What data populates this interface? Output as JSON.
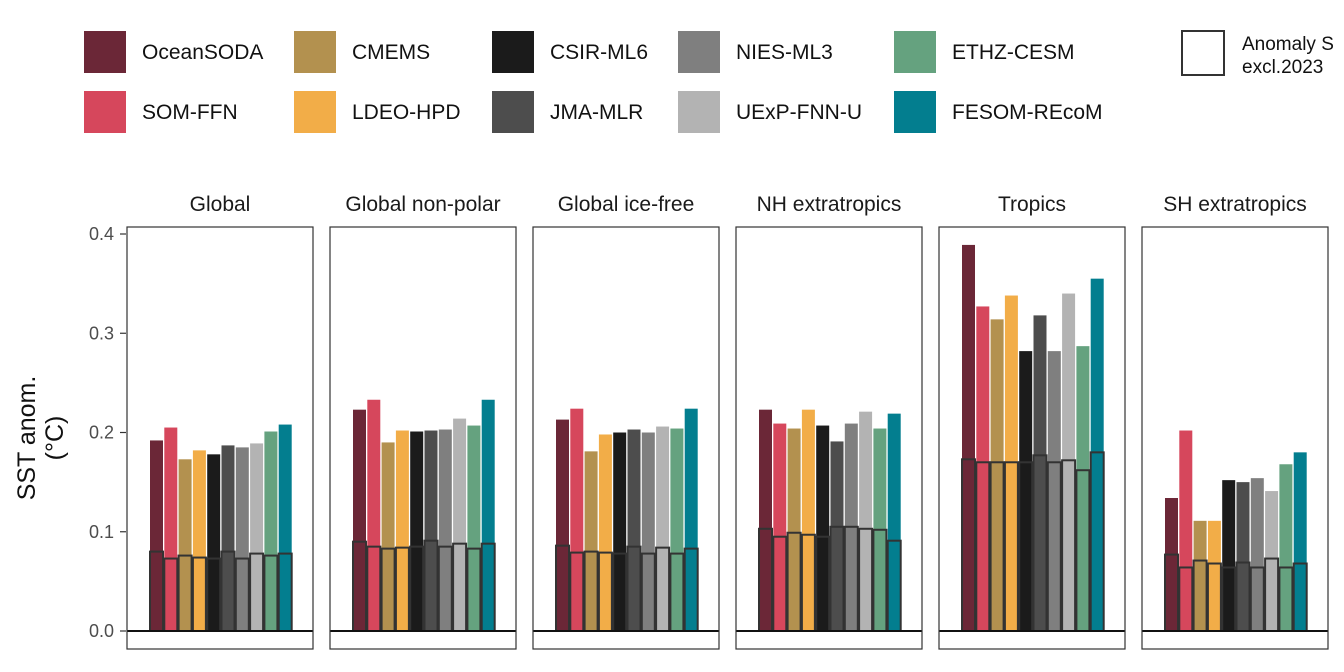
{
  "chart_data": {
    "type": "bar",
    "ylabel_line1": "SST anom.",
    "ylabel_line2": "(°C)",
    "ylim": [
      -0.02,
      0.41
    ],
    "yticks": [
      0.0,
      0.1,
      0.2,
      0.3,
      0.4
    ],
    "ytick_labels": [
      "0.0",
      "0.1",
      "0.2",
      "0.3",
      "0.4"
    ],
    "legend_position": "top",
    "legend_note_line1": "Anomaly S",
    "legend_note_line2": "excl.2023",
    "products": [
      {
        "name": "OceanSODA",
        "color": "#6b2737"
      },
      {
        "name": "SOM-FFN",
        "color": "#d6475c"
      },
      {
        "name": "CMEMS",
        "color": "#b3914f"
      },
      {
        "name": "LDEO-HPD",
        "color": "#f2ad48"
      },
      {
        "name": "CSIR-ML6",
        "color": "#1b1b1b"
      },
      {
        "name": "JMA-MLR",
        "color": "#4d4d4d"
      },
      {
        "name": "NIES-ML3",
        "color": "#7f7f7f"
      },
      {
        "name": "UExP-FNN-U",
        "color": "#b3b3b3"
      },
      {
        "name": "ETHZ-CESM",
        "color": "#65a27f"
      },
      {
        "name": "FESOM-REcoM",
        "color": "#037e8f"
      }
    ],
    "panels": [
      {
        "title": "Global",
        "values": [
          0.192,
          0.205,
          0.173,
          0.182,
          0.178,
          0.187,
          0.185,
          0.189,
          0.201,
          0.208
        ],
        "excl2023": [
          0.08,
          0.073,
          0.076,
          0.074,
          0.073,
          0.08,
          0.073,
          0.078,
          0.076,
          0.078
        ]
      },
      {
        "title": "Global non-polar",
        "values": [
          0.223,
          0.233,
          0.19,
          0.202,
          0.201,
          0.202,
          0.203,
          0.214,
          0.207,
          0.233
        ],
        "excl2023": [
          0.09,
          0.085,
          0.083,
          0.084,
          0.085,
          0.091,
          0.085,
          0.088,
          0.083,
          0.088
        ]
      },
      {
        "title": "Global ice-free",
        "values": [
          0.213,
          0.224,
          0.181,
          0.198,
          0.2,
          0.203,
          0.2,
          0.206,
          0.204,
          0.224
        ],
        "excl2023": [
          0.086,
          0.079,
          0.08,
          0.079,
          0.078,
          0.085,
          0.078,
          0.084,
          0.078,
          0.083
        ]
      },
      {
        "title": "NH extratropics",
        "values": [
          0.223,
          0.209,
          0.204,
          0.223,
          0.207,
          0.191,
          0.209,
          0.221,
          0.204,
          0.219
        ],
        "excl2023": [
          0.103,
          0.095,
          0.099,
          0.097,
          0.095,
          0.105,
          0.105,
          0.103,
          0.102,
          0.091
        ]
      },
      {
        "title": "Tropics",
        "values": [
          0.389,
          0.327,
          0.314,
          0.338,
          0.282,
          0.318,
          0.282,
          0.34,
          0.287,
          0.355
        ],
        "excl2023": [
          0.173,
          0.17,
          0.17,
          0.17,
          0.17,
          0.177,
          0.17,
          0.172,
          0.162,
          0.18
        ]
      },
      {
        "title": "SH extratropics",
        "values": [
          0.134,
          0.202,
          0.111,
          0.111,
          0.152,
          0.15,
          0.154,
          0.141,
          0.168,
          0.18
        ],
        "excl2023": [
          0.077,
          0.064,
          0.071,
          0.068,
          0.064,
          0.069,
          0.064,
          0.073,
          0.064,
          0.068
        ]
      }
    ]
  }
}
